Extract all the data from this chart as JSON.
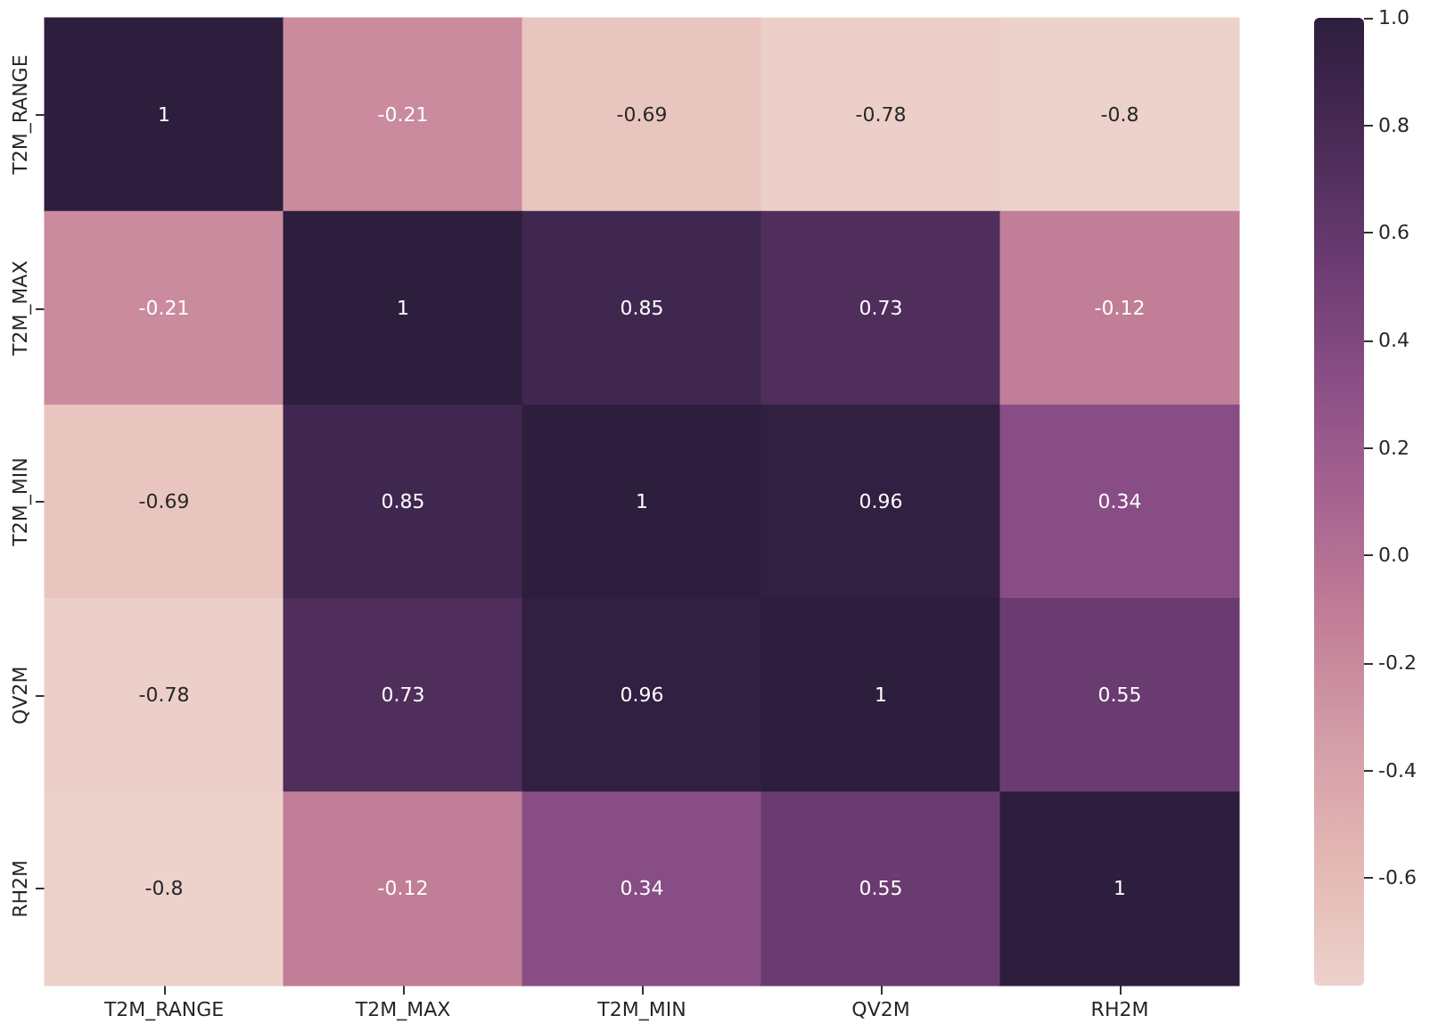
{
  "chart_data": {
    "type": "heatmap",
    "categories": [
      "T2M_RANGE",
      "T2M_MAX",
      "T2M_MIN",
      "QV2M",
      "RH2M"
    ],
    "y_categories": [
      "T2M_RANGE",
      "T2M_MAX",
      "T2M_MIN",
      "QV2M",
      "RH2M"
    ],
    "cells": [
      [
        1,
        -0.21,
        -0.69,
        -0.78,
        -0.8
      ],
      [
        -0.21,
        1,
        0.85,
        0.73,
        -0.12
      ],
      [
        -0.69,
        0.85,
        1,
        0.96,
        0.34
      ],
      [
        -0.78,
        0.73,
        0.96,
        1,
        0.55
      ],
      [
        -0.8,
        -0.12,
        0.34,
        0.55,
        1
      ]
    ],
    "clim": [
      -0.8,
      1
    ],
    "cticks": [
      -0.6,
      -0.4,
      -0.2,
      {
        "value": 0,
        "label": "0.0"
      },
      0.2,
      0.4,
      0.6,
      0.8,
      {
        "value": 1,
        "label": "1.0"
      }
    ],
    "data_labels": true
  }
}
